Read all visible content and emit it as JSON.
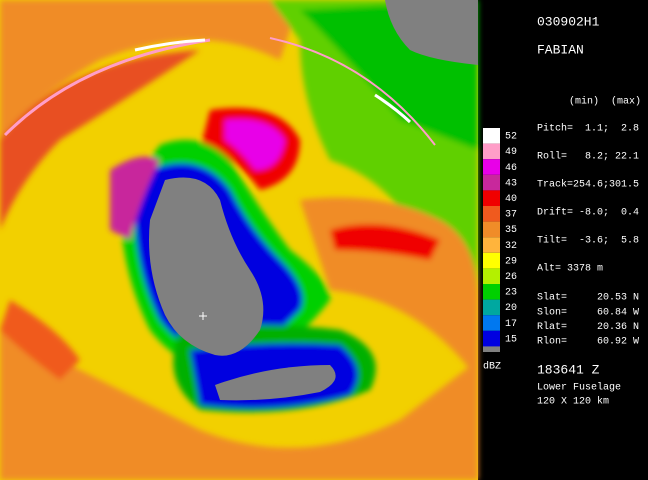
{
  "legend": {
    "entries": [
      {
        "label": "52",
        "color": "#ffffff"
      },
      {
        "label": "49",
        "color": "#ff9ec8"
      },
      {
        "label": "46",
        "color": "#e800e8"
      },
      {
        "label": "43",
        "color": "#c8289c"
      },
      {
        "label": "40",
        "color": "#f00000"
      },
      {
        "label": "37",
        "color": "#f05a1e"
      },
      {
        "label": "35",
        "color": "#f08c28"
      },
      {
        "label": "32",
        "color": "#ffb43c"
      },
      {
        "label": "29",
        "color": "#ffff00"
      },
      {
        "label": "26",
        "color": "#b4f000"
      },
      {
        "label": "23",
        "color": "#00d000"
      },
      {
        "label": "20",
        "color": "#00a8a0"
      },
      {
        "label": "17",
        "color": "#0078f0"
      },
      {
        "label": "15",
        "color": "#0000e0"
      }
    ],
    "unit": "dBZ"
  },
  "header": {
    "flight": "030902H1",
    "storm": "FABIAN"
  },
  "attitude": {
    "columns": "(min)  (max)",
    "rows": [
      "Pitch=  1.1;  2.8",
      "Roll=   8.2; 22.1",
      "Track=254.6;301.5",
      "Drift= -8.0;  0.4",
      "Tilt=  -3.6;  5.8"
    ]
  },
  "altitude": "Alt= 3378 m",
  "positions": [
    "Slat=     20.53 N",
    "Slon=     60.84 W",
    "Rlat=     20.36 N",
    "Rlon=     60.92 W"
  ],
  "footer": {
    "time": "183641 Z",
    "radar": "Lower Fuselage",
    "range": "120 X 120 km"
  }
}
